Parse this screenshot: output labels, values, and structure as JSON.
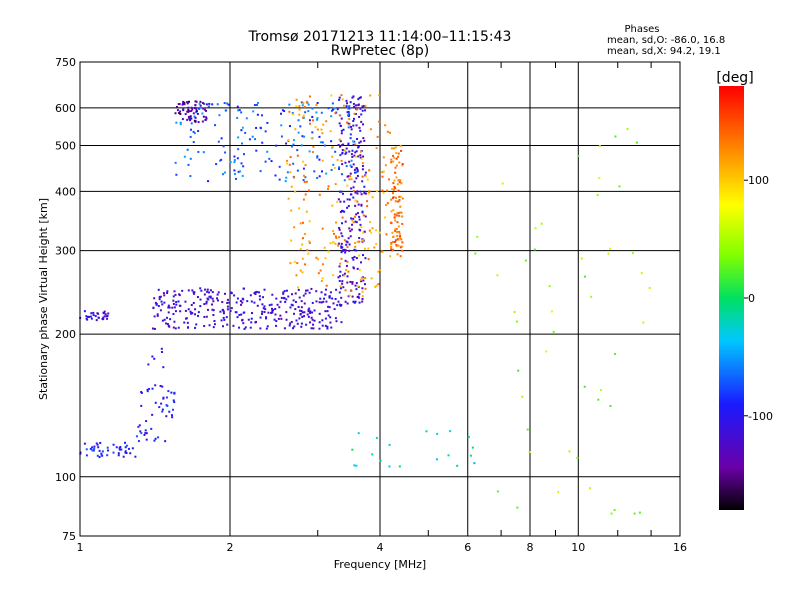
{
  "chart_data": {
    "type": "scatter",
    "title": "Tromsø 20171213 11:14:00–11:15:43",
    "subtitle": "RwPretec (8p)",
    "xlabel": "Frequency [MHz]",
    "ylabel": "Stationary phase Virtual Height [km]",
    "x_scale": "log",
    "y_scale": "log",
    "xlim": [
      1,
      16
    ],
    "ylim": [
      75,
      750
    ],
    "x_ticks": [
      1,
      2,
      4,
      6,
      8,
      10,
      16
    ],
    "x_tick_labels": [
      "1",
      "2",
      "4",
      "6",
      "8",
      "10",
      "16"
    ],
    "x_minor_ticks": [
      3,
      5,
      7,
      9,
      12,
      14
    ],
    "y_ticks": [
      75,
      100,
      200,
      300,
      400,
      500,
      600,
      750
    ],
    "y_tick_labels": [
      "75",
      "100",
      "200",
      "300",
      "400",
      "500",
      "600",
      "750"
    ],
    "grid": true,
    "stats": {
      "heading": "Phases",
      "line_o": "mean, sd,O: -86.0, 16.8",
      "line_x": "mean, sd,X:  94.2, 19.1"
    },
    "colorbar": {
      "label": "[deg]",
      "range": [
        -180,
        180
      ],
      "ticks": [
        100,
        0,
        -100
      ],
      "tick_labels": [
        "100",
        "0",
        "-100"
      ]
    },
    "point_groups": [
      {
        "freq": [
          1.0,
          1.14
        ],
        "height": [
          213,
          225
        ],
        "phase": -110,
        "count": 30
      },
      {
        "freq": [
          1.0,
          1.3
        ],
        "height": [
          110,
          118
        ],
        "phase": -95,
        "count": 45
      },
      {
        "freq": [
          1.3,
          1.55
        ],
        "height": [
          118,
          160
        ],
        "phase": -95,
        "count": 50
      },
      {
        "freq": [
          1.37,
          1.5
        ],
        "height": [
          170,
          190
        ],
        "phase": -100,
        "count": 6
      },
      {
        "freq": [
          1.4,
          3.35
        ],
        "height": [
          205,
          250
        ],
        "phase": -115,
        "count": 340
      },
      {
        "freq": [
          3.3,
          3.75
        ],
        "height": [
          230,
          640
        ],
        "phase": -115,
        "count": 240
      },
      {
        "freq": [
          1.55,
          3.6
        ],
        "height": [
          420,
          620
        ],
        "phase": -70,
        "count": 200
      },
      {
        "freq": [
          1.55,
          1.8
        ],
        "height": [
          560,
          620
        ],
        "phase": -140,
        "count": 60
      },
      {
        "freq": [
          2.6,
          4.2
        ],
        "height": [
          240,
          640
        ],
        "phase": 120,
        "count": 220
      },
      {
        "freq": [
          4.2,
          4.45
        ],
        "height": [
          290,
          500
        ],
        "phase": 135,
        "count": 100
      },
      {
        "freq": [
          3.5,
          6.2
        ],
        "height": [
          105,
          125
        ],
        "phase": -20,
        "count": 20
      },
      {
        "freq": [
          6.2,
          14
        ],
        "height": [
          80,
          600
        ],
        "phase": 40,
        "count": 50
      }
    ]
  }
}
